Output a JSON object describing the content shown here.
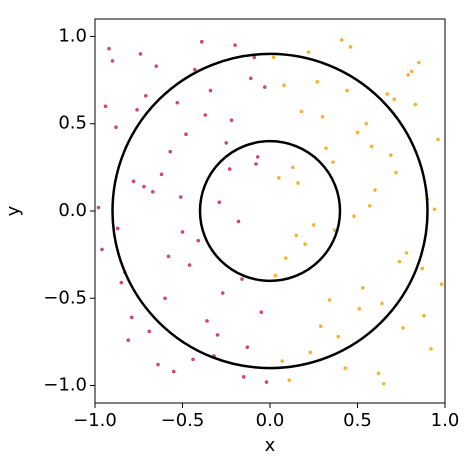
{
  "chart_data": {
    "type": "scatter",
    "x_label": "x",
    "y_label": "y",
    "xlim": [
      -1.0,
      1.0
    ],
    "ylim": [
      -1.1,
      1.1
    ],
    "xticks": [
      {
        "value": -1.0,
        "label": "−1.0"
      },
      {
        "value": -0.5,
        "label": "−0.5"
      },
      {
        "value": 0.0,
        "label": "0.0"
      },
      0.5,
      {
        "value": 1.0,
        "label": "1.0"
      }
    ],
    "yticks": [
      {
        "value": -1.0,
        "label": "−1.0"
      },
      {
        "value": -0.5,
        "label": "−0.5"
      },
      {
        "value": 0.0,
        "label": "0.0"
      },
      0.5,
      {
        "value": 1.0,
        "label": "1.0"
      }
    ],
    "grid": false,
    "circles": [
      {
        "center": [
          0,
          0
        ],
        "radius": 0.9,
        "color": "#000000"
      },
      {
        "center": [
          0,
          0
        ],
        "radius": 0.4,
        "color": "#000000"
      }
    ],
    "series": [
      {
        "color": "#cc4778",
        "x": [
          -0.92,
          -0.85,
          -0.78,
          -0.71,
          -0.64,
          -0.57,
          -0.5,
          -0.43,
          -0.36,
          -0.29,
          -0.22,
          -0.15,
          -0.08,
          -0.03,
          -0.96,
          -0.88,
          -0.81,
          -0.74,
          -0.67,
          -0.6,
          -0.53,
          -0.46,
          -0.39,
          -0.32,
          -0.25,
          -0.18,
          -0.11,
          -0.05,
          -0.98,
          -0.9,
          -0.83,
          -0.76,
          -0.69,
          -0.62,
          -0.55,
          -0.48,
          -0.41,
          -0.34,
          -0.27,
          -0.2,
          -0.13,
          -0.07,
          -0.94,
          -0.87,
          -0.79,
          -0.72,
          -0.65,
          -0.58,
          -0.51,
          -0.44,
          -0.37,
          -0.3,
          -0.23,
          -0.16,
          -0.09,
          -0.02
        ],
        "values": [
          0.93,
          -0.41,
          0.17,
          0.66,
          -0.88,
          0.34,
          -0.12,
          0.81,
          -0.63,
          0.05,
          0.52,
          -0.95,
          0.27,
          0.71,
          -0.22,
          0.48,
          -0.74,
          0.9,
          0.11,
          -0.5,
          0.62,
          -0.31,
          0.97,
          -0.83,
          0.39,
          -0.06,
          0.76,
          -0.58,
          0.02,
          0.86,
          -0.35,
          0.58,
          -0.69,
          0.21,
          -0.92,
          0.44,
          -0.17,
          0.69,
          -0.47,
          0.95,
          -0.78,
          0.31,
          0.6,
          -0.1,
          -0.61,
          0.14,
          0.83,
          -0.26,
          0.08,
          -0.85,
          0.55,
          -0.71,
          0.24,
          -0.39,
          0.88,
          -0.98
        ]
      },
      {
        "color": "#f7b135",
        "x": [
          0.03,
          0.08,
          0.15,
          0.22,
          0.29,
          0.36,
          0.43,
          0.5,
          0.57,
          0.64,
          0.71,
          0.78,
          0.85,
          0.92,
          0.05,
          0.11,
          0.18,
          0.25,
          0.32,
          0.39,
          0.46,
          0.53,
          0.6,
          0.67,
          0.74,
          0.81,
          0.88,
          0.96,
          0.07,
          0.13,
          0.2,
          0.27,
          0.34,
          0.41,
          0.48,
          0.55,
          0.62,
          0.69,
          0.76,
          0.83,
          0.9,
          0.98,
          0.02,
          0.09,
          0.16,
          0.23,
          0.3,
          0.37,
          0.44,
          0.51,
          0.58,
          0.65,
          0.72,
          0.79,
          0.87,
          0.94
        ],
        "values": [
          -0.37,
          0.72,
          -0.14,
          0.91,
          -0.66,
          0.28,
          -0.9,
          0.45,
          0.03,
          -0.53,
          0.64,
          -0.24,
          0.85,
          -0.79,
          0.19,
          -0.97,
          0.57,
          -0.08,
          0.36,
          -0.72,
          0.94,
          -0.44,
          0.12,
          0.67,
          -0.29,
          0.8,
          -0.6,
          0.41,
          -0.86,
          0.25,
          -0.19,
          0.74,
          -0.51,
          0.98,
          -0.03,
          0.5,
          -0.93,
          0.32,
          -0.67,
          0.61,
          0.07,
          -0.42,
          0.88,
          -0.27,
          0.16,
          -0.81,
          0.54,
          -0.11,
          0.69,
          -0.56,
          0.37,
          -0.99,
          0.22,
          0.78,
          -0.33,
          0.01
        ]
      }
    ]
  }
}
